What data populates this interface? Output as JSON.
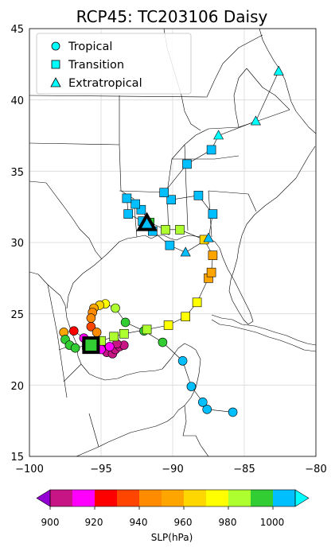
{
  "title": "RCP45: TC203106 Daisy",
  "map": {
    "lon_range": [
      -100,
      -80
    ],
    "lat_range": [
      15,
      45
    ],
    "x_ticks": [
      "−100",
      "−95",
      "−90",
      "−85",
      "−80"
    ],
    "y_ticks": [
      "15",
      "20",
      "25",
      "30",
      "35",
      "40",
      "45"
    ],
    "grid": true,
    "land_color": "#ffffff",
    "border_color": "#000000"
  },
  "legend": {
    "placement": "top-left",
    "entries": [
      {
        "label": "Tropical",
        "marker": "circle"
      },
      {
        "label": "Transition",
        "marker": "square"
      },
      {
        "label": "Extratropical",
        "marker": "triangle"
      }
    ],
    "marker_color": "#00ffff"
  },
  "colorbar": {
    "label": "SLP(hPa)",
    "tick_labels": [
      "900",
      "920",
      "940",
      "960",
      "980",
      "1000"
    ],
    "boundaries": [
      900,
      910,
      920,
      930,
      940,
      950,
      960,
      970,
      980,
      990,
      1000,
      1010
    ],
    "colors": [
      "#c71585",
      "#ff00ff",
      "#ff0000",
      "#ff4500",
      "#ff8c00",
      "#ffa500",
      "#ffd700",
      "#ffff00",
      "#adff2f",
      "#32cd32",
      "#00bfff"
    ],
    "under_color": "#9400d3",
    "over_color": "#00ffff"
  },
  "chart_data": {
    "type": "scatter",
    "x_label": "",
    "y_label": "",
    "genesis_marker": {
      "lon": -95.7,
      "lat": 22.8,
      "shape": "square"
    },
    "landfall_marker": {
      "lon": -91.8,
      "lat": 31.3,
      "shape": "triangle"
    },
    "track": [
      {
        "lon": -85.8,
        "lat": 18.1,
        "slp": 1004,
        "stage": "tropical"
      },
      {
        "lon": -87.6,
        "lat": 18.3,
        "slp": 1004,
        "stage": "tropical"
      },
      {
        "lon": -87.9,
        "lat": 18.8,
        "slp": 1004,
        "stage": "tropical"
      },
      {
        "lon": -88.7,
        "lat": 19.9,
        "slp": 1004,
        "stage": "tropical"
      },
      {
        "lon": -89.3,
        "lat": 21.7,
        "slp": 1004,
        "stage": "tropical"
      },
      {
        "lon": -90.7,
        "lat": 23.0,
        "slp": 995,
        "stage": "tropical"
      },
      {
        "lon": -92.0,
        "lat": 23.8,
        "slp": 995,
        "stage": "tropical"
      },
      {
        "lon": -93.3,
        "lat": 24.4,
        "slp": 995,
        "stage": "tropical"
      },
      {
        "lon": -94.0,
        "lat": 25.4,
        "slp": 985,
        "stage": "tropical"
      },
      {
        "lon": -94.7,
        "lat": 25.7,
        "slp": 975,
        "stage": "tropical"
      },
      {
        "lon": -95.1,
        "lat": 25.6,
        "slp": 965,
        "stage": "tropical"
      },
      {
        "lon": -95.5,
        "lat": 25.4,
        "slp": 955,
        "stage": "tropical"
      },
      {
        "lon": -95.6,
        "lat": 25.1,
        "slp": 945,
        "stage": "tropical"
      },
      {
        "lon": -95.7,
        "lat": 24.7,
        "slp": 945,
        "stage": "tropical"
      },
      {
        "lon": -95.7,
        "lat": 24.1,
        "slp": 935,
        "stage": "tropical"
      },
      {
        "lon": -95.3,
        "lat": 23.7,
        "slp": 945,
        "stage": "tropical"
      },
      {
        "lon": -95.2,
        "lat": 23.1,
        "slp": 925,
        "stage": "tropical"
      },
      {
        "lon": -95.0,
        "lat": 22.6,
        "slp": 905,
        "stage": "tropical"
      },
      {
        "lon": -94.6,
        "lat": 22.3,
        "slp": 905,
        "stage": "tropical"
      },
      {
        "lon": -94.2,
        "lat": 22.2,
        "slp": 905,
        "stage": "tropical"
      },
      {
        "lon": -94.0,
        "lat": 22.5,
        "slp": 905,
        "stage": "tropical"
      },
      {
        "lon": -93.7,
        "lat": 22.7,
        "slp": 905,
        "stage": "tropical"
      },
      {
        "lon": -93.4,
        "lat": 22.8,
        "slp": 905,
        "stage": "tropical"
      },
      {
        "lon": -93.9,
        "lat": 22.9,
        "slp": 905,
        "stage": "tropical"
      },
      {
        "lon": -94.4,
        "lat": 22.7,
        "slp": 915,
        "stage": "tropical"
      },
      {
        "lon": -95.0,
        "lat": 22.5,
        "slp": 915,
        "stage": "tropical"
      },
      {
        "lon": -95.5,
        "lat": 22.7,
        "slp": 915,
        "stage": "tropical"
      },
      {
        "lon": -96.2,
        "lat": 23.3,
        "slp": 915,
        "stage": "tropical"
      },
      {
        "lon": -96.9,
        "lat": 23.8,
        "slp": 925,
        "stage": "tropical"
      },
      {
        "lon": -97.6,
        "lat": 23.7,
        "slp": 955,
        "stage": "tropical"
      },
      {
        "lon": -97.5,
        "lat": 23.2,
        "slp": 995,
        "stage": "tropical"
      },
      {
        "lon": -97.2,
        "lat": 22.8,
        "slp": 995,
        "stage": "tropical"
      },
      {
        "lon": -96.8,
        "lat": 22.6,
        "slp": 995,
        "stage": "tropical"
      },
      {
        "lon": -96.0,
        "lat": 22.8,
        "slp": 995,
        "stage": "transition"
      },
      {
        "lon": -95.0,
        "lat": 23.1,
        "slp": 985,
        "stage": "transition"
      },
      {
        "lon": -94.1,
        "lat": 23.4,
        "slp": 985,
        "stage": "transition"
      },
      {
        "lon": -93.4,
        "lat": 23.6,
        "slp": 985,
        "stage": "transition"
      },
      {
        "lon": -91.8,
        "lat": 23.9,
        "slp": 985,
        "stage": "transition"
      },
      {
        "lon": -90.3,
        "lat": 24.2,
        "slp": 975,
        "stage": "transition"
      },
      {
        "lon": -89.1,
        "lat": 24.8,
        "slp": 975,
        "stage": "transition"
      },
      {
        "lon": -88.3,
        "lat": 25.8,
        "slp": 975,
        "stage": "transition"
      },
      {
        "lon": -87.5,
        "lat": 27.5,
        "slp": 955,
        "stage": "transition"
      },
      {
        "lon": -87.3,
        "lat": 27.9,
        "slp": 955,
        "stage": "transition"
      },
      {
        "lon": -87.2,
        "lat": 29.1,
        "slp": 955,
        "stage": "transition"
      },
      {
        "lon": -87.8,
        "lat": 30.2,
        "slp": 965,
        "stage": "transition"
      },
      {
        "lon": -89.5,
        "lat": 30.9,
        "slp": 985,
        "stage": "transition"
      },
      {
        "lon": -90.5,
        "lat": 30.9,
        "slp": 985,
        "stage": "transition"
      },
      {
        "lon": -91.6,
        "lat": 31.4,
        "slp": 995,
        "stage": "transition"
      },
      {
        "lon": -92.2,
        "lat": 32.3,
        "slp": 1004,
        "stage": "transition"
      },
      {
        "lon": -92.6,
        "lat": 32.7,
        "slp": 1004,
        "stage": "transition"
      },
      {
        "lon": -93.2,
        "lat": 33.1,
        "slp": 1004,
        "stage": "transition"
      },
      {
        "lon": -93.1,
        "lat": 32.0,
        "slp": 1004,
        "stage": "transition"
      },
      {
        "lon": -92.1,
        "lat": 31.5,
        "slp": 1004,
        "stage": "transition"
      },
      {
        "lon": -91.4,
        "lat": 30.8,
        "slp": 1004,
        "stage": "transition"
      },
      {
        "lon": -90.2,
        "lat": 29.8,
        "slp": 1004,
        "stage": "transition"
      },
      {
        "lon": -89.1,
        "lat": 29.3,
        "slp": 1004,
        "stage": "extratropical"
      },
      {
        "lon": -87.5,
        "lat": 30.3,
        "slp": 1004,
        "stage": "extratropical"
      },
      {
        "lon": -87.2,
        "lat": 32.0,
        "slp": 1004,
        "stage": "transition"
      },
      {
        "lon": -88.2,
        "lat": 33.3,
        "slp": 1004,
        "stage": "transition"
      },
      {
        "lon": -90.1,
        "lat": 33.0,
        "slp": 1004,
        "stage": "transition"
      },
      {
        "lon": -90.6,
        "lat": 33.5,
        "slp": 1004,
        "stage": "transition"
      },
      {
        "lon": -89.0,
        "lat": 35.5,
        "slp": 1004,
        "stage": "transition"
      },
      {
        "lon": -87.3,
        "lat": 36.5,
        "slp": 1004,
        "stage": "transition"
      },
      {
        "lon": -86.8,
        "lat": 37.5,
        "slp": 1015,
        "stage": "extratropical"
      },
      {
        "lon": -84.2,
        "lat": 38.5,
        "slp": 1015,
        "stage": "extratropical"
      },
      {
        "lon": -82.6,
        "lat": 42.0,
        "slp": 1015,
        "stage": "extratropical"
      }
    ]
  }
}
